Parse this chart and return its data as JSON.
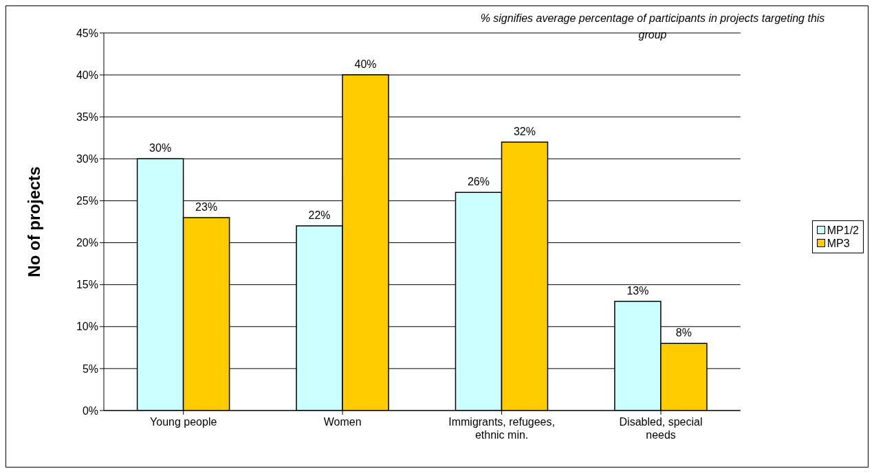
{
  "chart_data": {
    "type": "bar",
    "ylabel": "No of projects",
    "categories": [
      "Young people",
      "Women",
      "Immigrants, refugees, ethnic min.",
      "Disabled, special needs"
    ],
    "series": [
      {
        "name": "MP1/2",
        "color": "#ccffff",
        "values": [
          30,
          22,
          26,
          13
        ],
        "value_labels": [
          "30%",
          "22%",
          "26%",
          "13%"
        ]
      },
      {
        "name": "MP3",
        "color": "#ffcc00",
        "values": [
          23,
          40,
          32,
          8
        ],
        "value_labels": [
          "23%",
          "40%",
          "32%",
          "8%"
        ]
      }
    ],
    "ylim": [
      0,
      45
    ],
    "yticks": [
      {
        "value": 0,
        "label": "0%"
      },
      {
        "value": 5,
        "label": "5%"
      },
      {
        "value": 10,
        "label": "10%"
      },
      {
        "value": 15,
        "label": "15%"
      },
      {
        "value": 20,
        "label": "20%"
      },
      {
        "value": 25,
        "label": "25%"
      },
      {
        "value": 30,
        "label": "30%"
      },
      {
        "value": 35,
        "label": "35%"
      },
      {
        "value": 40,
        "label": "40%"
      },
      {
        "value": 45,
        "label": "45%"
      }
    ],
    "grid": "y",
    "legend": "right",
    "annotations": [
      "% signifies average percentage of participants in projects targeting this group"
    ]
  }
}
